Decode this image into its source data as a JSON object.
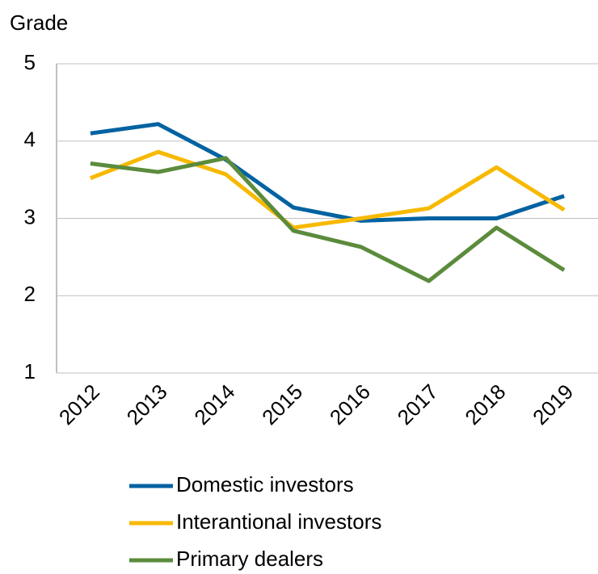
{
  "chart_data": {
    "type": "line",
    "ylabel": "Grade",
    "categories": [
      "2012",
      "2013",
      "2014",
      "2015",
      "2016",
      "2017",
      "2018",
      "2019"
    ],
    "series": [
      {
        "name": "Domestic investors",
        "color": "#0062a1",
        "values": [
          4.1,
          4.22,
          3.76,
          3.14,
          2.97,
          3.0,
          3.0,
          3.29
        ]
      },
      {
        "name": "Interantional investors",
        "color": "#f7b900",
        "values": [
          3.52,
          3.86,
          3.57,
          2.88,
          3.0,
          3.13,
          3.66,
          3.11
        ]
      },
      {
        "name": "Primary dealers",
        "color": "#5b8b3c",
        "values": [
          3.71,
          3.6,
          3.78,
          2.84,
          2.63,
          2.19,
          2.88,
          2.33
        ]
      }
    ],
    "ylim": [
      1,
      5
    ],
    "yticks": [
      1,
      2,
      3,
      4,
      5
    ],
    "grid": true,
    "legend": "bottom"
  }
}
